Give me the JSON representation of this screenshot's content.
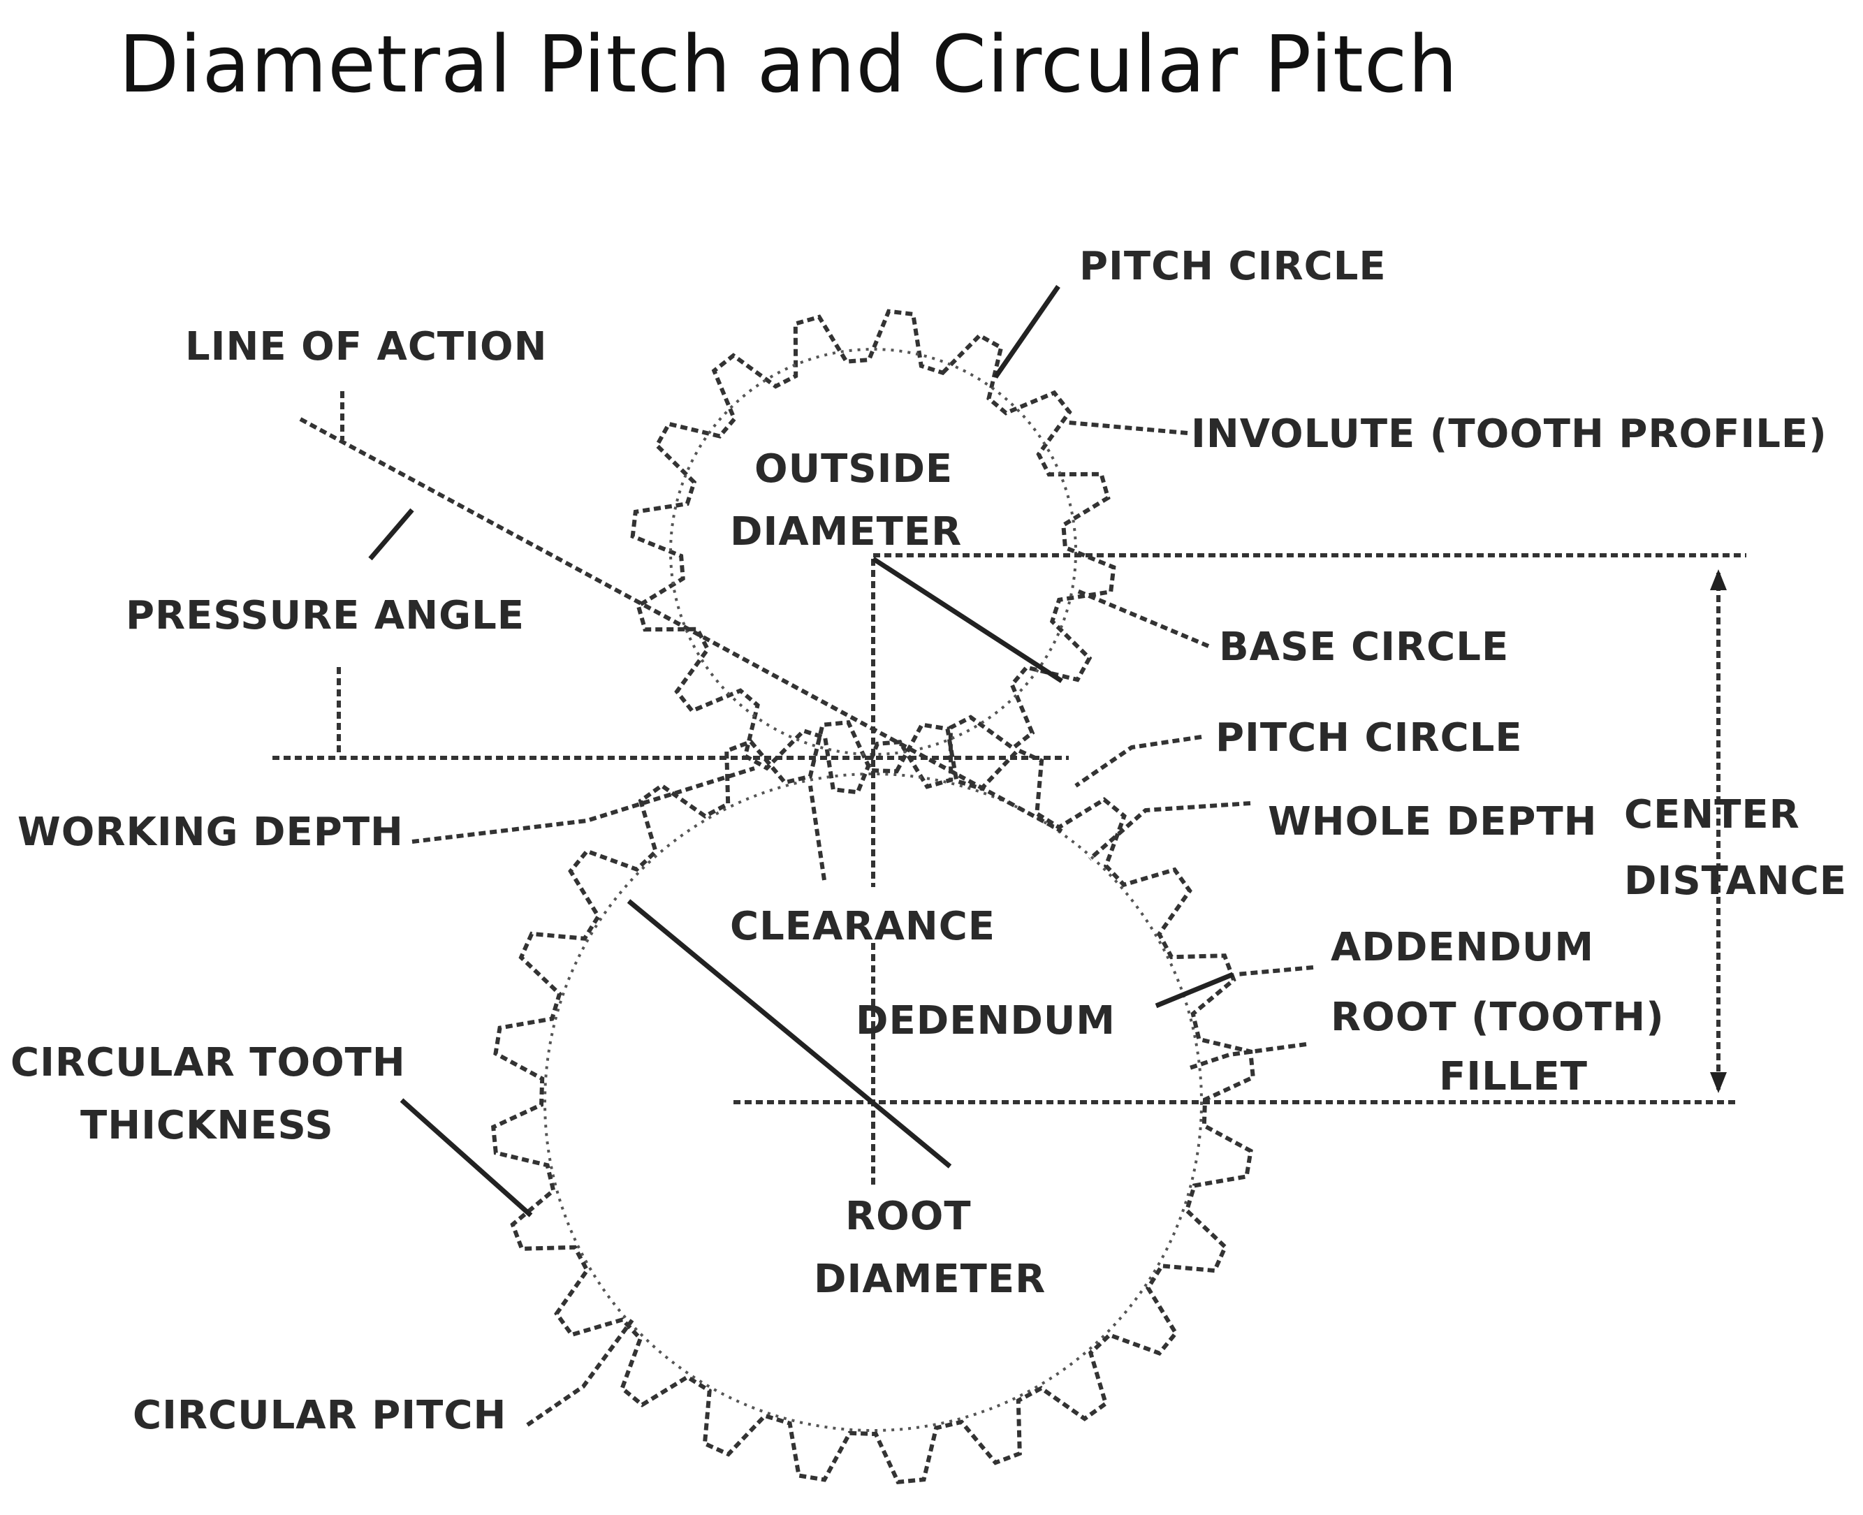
{
  "title": "Diametral Pitch and Circular Pitch",
  "labels": {
    "pitch_circle_top": "PITCH CIRCLE",
    "line_of_action": "LINE OF ACTION",
    "involute": "INVOLUTE (TOOTH PROFILE)",
    "outside": "OUTSIDE",
    "diameter_top": "DIAMETER",
    "pressure_angle": "PRESSURE ANGLE",
    "base_circle": "BASE CIRCLE",
    "pitch_circle_mid": "PITCH CIRCLE",
    "working_depth": "WORKING DEPTH",
    "whole_depth": "WHOLE DEPTH",
    "center": "CENTER",
    "distance": "DISTANCE",
    "clearance": "CLEARANCE",
    "addendum": "ADDENDUM",
    "dedendum": "DEDENDUM",
    "root_tooth": "ROOT (TOOTH)",
    "fillet": "FILLET",
    "circular_tooth": "CIRCULAR TOOTH",
    "thickness": "THICKNESS",
    "root": "ROOT",
    "diameter_bottom": "DIAMETER",
    "circular_pitch": "CIRCULAR PITCH"
  }
}
